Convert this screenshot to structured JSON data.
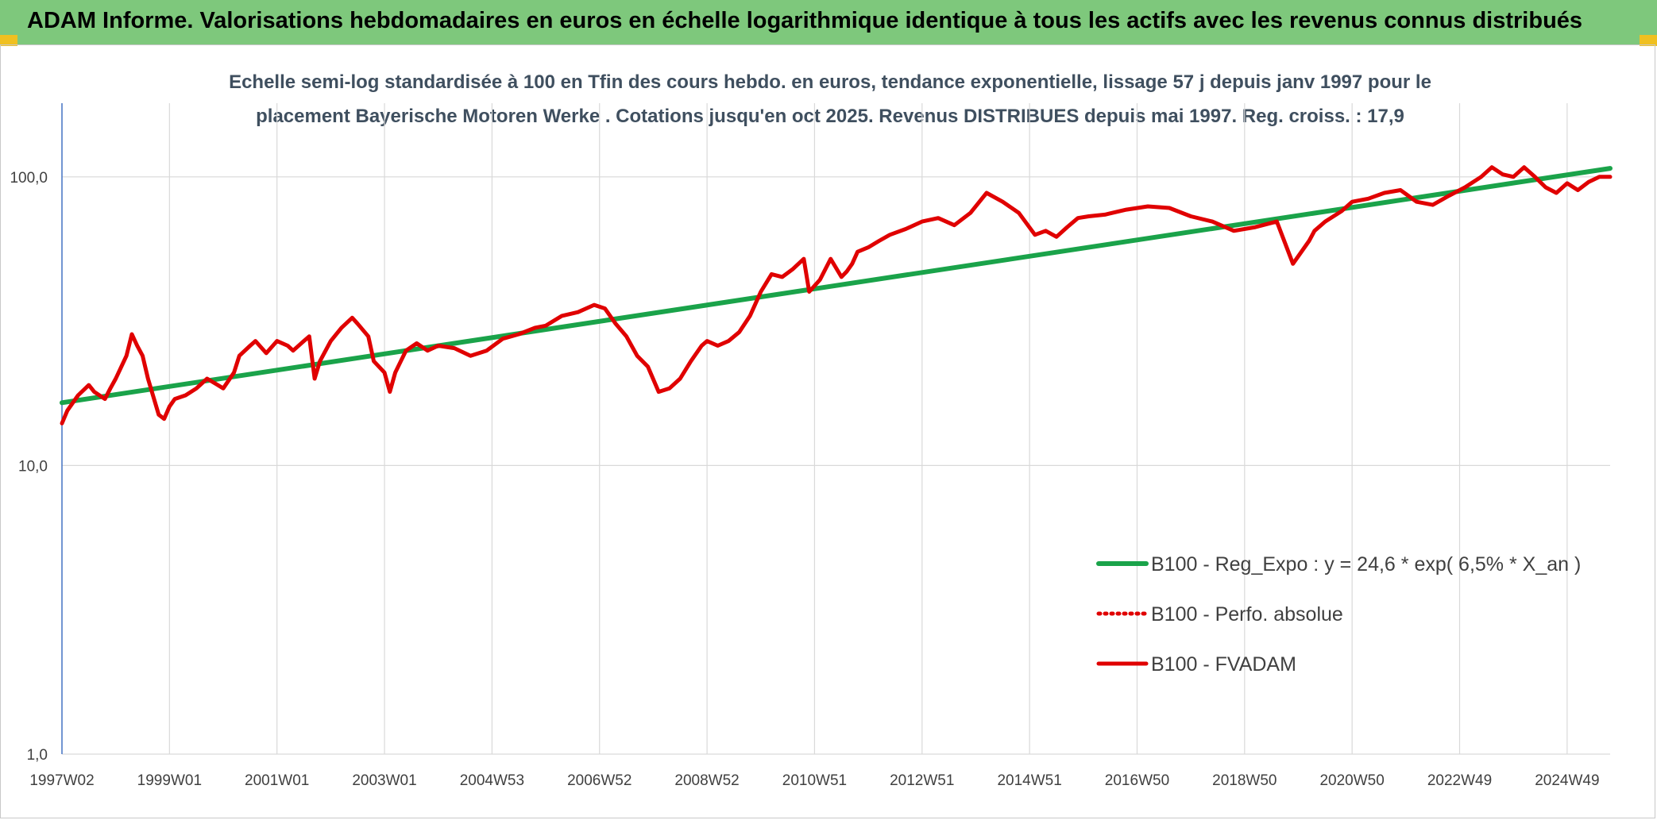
{
  "header": {
    "title": "ADAM Informe. Valorisations hebdomadaires en euros en échelle logarithmique identique à tous les actifs avec les revenus connus distribués"
  },
  "chart_data": {
    "type": "line",
    "title_line1": "Echelle semi-log standardisée à 100 en Tfin des cours hebdo. en euros, tendance exponentielle, lissage 57 j depuis janv 1997 pour le",
    "title_line2": "placement Bayerische Motoren Werke . Cotations jusqu'en oct 2025. Revenus DISTRIBUES depuis mai 1997. Reg. croiss. : 17,9",
    "y_scale": "log",
    "ylim": [
      1,
      180
    ],
    "y_ticks": [
      "1,0",
      "10,0",
      "100,0"
    ],
    "y_tick_values": [
      1,
      10,
      100
    ],
    "xlim": [
      1997.0,
      2025.8
    ],
    "x_ticks": [
      "1997W02",
      "1999W01",
      "2001W01",
      "2003W01",
      "2004W53",
      "2006W52",
      "2008W52",
      "2010W51",
      "2012W51",
      "2014W51",
      "2016W50",
      "2018W50",
      "2020W50",
      "2022W49",
      "2024W49"
    ],
    "x_tick_values": [
      1997.0,
      1999.0,
      2001.0,
      2003.0,
      2005.0,
      2007.0,
      2009.0,
      2011.0,
      2013.0,
      2015.0,
      2017.0,
      2019.0,
      2021.0,
      2023.0,
      2025.0
    ],
    "grid": true,
    "legend_position": "bottom-right",
    "series": [
      {
        "name": "B100 - Reg_Expo : y = 24,6 * exp( 6,5% *  X_an )",
        "color": "#1aa34a",
        "style": "solid",
        "x": [
          1997.0,
          2025.8
        ],
        "y": [
          16.5,
          107
        ]
      },
      {
        "name": "B100 - Perfo. absolue",
        "color": "#e00000",
        "style": "dotted",
        "x": [],
        "y": []
      },
      {
        "name": "B100 - FVADAM",
        "color": "#e00000",
        "style": "solid",
        "x": [
          1997.0,
          1997.1,
          1997.3,
          1997.5,
          1997.6,
          1997.8,
          1997.9,
          1998.0,
          1998.2,
          1998.3,
          1998.4,
          1998.5,
          1998.6,
          1998.8,
          1998.9,
          1999.0,
          1999.1,
          1999.3,
          1999.5,
          1999.7,
          1999.9,
          2000.0,
          2000.2,
          2000.3,
          2000.5,
          2000.6,
          2000.8,
          2001.0,
          2001.2,
          2001.3,
          2001.5,
          2001.6,
          2001.7,
          2001.8,
          2002.0,
          2002.2,
          2002.4,
          2002.5,
          2002.7,
          2002.8,
          2003.0,
          2003.1,
          2003.2,
          2003.4,
          2003.6,
          2003.8,
          2004.0,
          2004.3,
          2004.6,
          2004.9,
          2005.2,
          2005.5,
          2005.8,
          2006.0,
          2006.3,
          2006.6,
          2006.9,
          2007.1,
          2007.3,
          2007.5,
          2007.7,
          2007.9,
          2008.1,
          2008.3,
          2008.5,
          2008.7,
          2008.9,
          2009.0,
          2009.2,
          2009.4,
          2009.6,
          2009.8,
          2010.0,
          2010.2,
          2010.4,
          2010.6,
          2010.8,
          2010.9,
          2011.1,
          2011.3,
          2011.5,
          2011.6,
          2011.7,
          2011.8,
          2012.0,
          2012.2,
          2012.4,
          2012.7,
          2013.0,
          2013.3,
          2013.6,
          2013.9,
          2014.2,
          2014.5,
          2014.8,
          2015.1,
          2015.3,
          2015.5,
          2015.7,
          2015.9,
          2016.1,
          2016.4,
          2016.8,
          2017.2,
          2017.6,
          2018.0,
          2018.4,
          2018.8,
          2019.2,
          2019.6,
          2019.9,
          2020.2,
          2020.3,
          2020.5,
          2020.8,
          2021.0,
          2021.3,
          2021.6,
          2021.9,
          2022.2,
          2022.5,
          2022.8,
          2023.1,
          2023.4,
          2023.6,
          2023.8,
          2024.0,
          2024.2,
          2024.4,
          2024.6,
          2024.8,
          2025.0,
          2025.2,
          2025.4,
          2025.6,
          2025.8
        ],
        "y": [
          14.0,
          15.5,
          17.5,
          19.0,
          18.0,
          17.0,
          18.5,
          20.0,
          24.0,
          28.5,
          26.0,
          24.0,
          20.0,
          15.0,
          14.5,
          16.0,
          17.0,
          17.5,
          18.5,
          20.0,
          19.0,
          18.5,
          21.0,
          24.0,
          26.0,
          27.0,
          24.5,
          27.0,
          26.0,
          25.0,
          27.0,
          28.0,
          20.0,
          23.0,
          27.0,
          30.0,
          32.5,
          31.0,
          28.0,
          23.0,
          21.0,
          18.0,
          21.0,
          25.0,
          26.5,
          25.0,
          26.0,
          25.5,
          24.0,
          25.0,
          27.5,
          28.5,
          30.0,
          30.5,
          33.0,
          34.0,
          36.0,
          35.0,
          31.0,
          28.0,
          24.0,
          22.0,
          18.0,
          18.5,
          20.0,
          23.0,
          26.0,
          27.0,
          26.0,
          27.0,
          29.0,
          33.0,
          40.0,
          46.0,
          45.0,
          48.0,
          52.0,
          40.0,
          44.0,
          52.0,
          45.0,
          47.0,
          50.0,
          55.0,
          57.0,
          60.0,
          63.0,
          66.0,
          70.0,
          72.0,
          68.0,
          75.0,
          88.0,
          82.0,
          75.0,
          63.0,
          65.0,
          62.0,
          67.0,
          72.0,
          73.0,
          74.0,
          77.0,
          79.0,
          78.0,
          73.0,
          70.0,
          65.0,
          67.0,
          70.0,
          50.0,
          60.0,
          65.0,
          70.0,
          76.0,
          82.0,
          84.0,
          88.0,
          90.0,
          82.0,
          80.0,
          86.0,
          92.0,
          100.0,
          108.0,
          102.0,
          100.0,
          108.0,
          100.0,
          92.0,
          88.0,
          95.0,
          90.0,
          96.0,
          100.0,
          100.0
        ]
      }
    ]
  }
}
